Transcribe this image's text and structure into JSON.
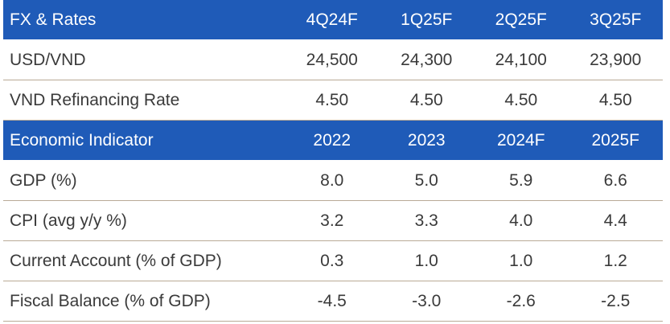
{
  "fx_section": {
    "header": [
      "FX & Rates",
      "4Q24F",
      "1Q25F",
      "2Q25F",
      "3Q25F"
    ],
    "rows": [
      [
        "USD/VND",
        "24,500",
        "24,300",
        "24,100",
        "23,900"
      ],
      [
        "VND Refinancing Rate",
        "4.50",
        "4.50",
        "4.50",
        "4.50"
      ]
    ]
  },
  "economic_section": {
    "header": [
      "Economic Indicator",
      "2022",
      "2023",
      "2024F",
      "2025F"
    ],
    "rows": [
      [
        "GDP (%)",
        "8.0",
        "5.0",
        "5.9",
        "6.6"
      ],
      [
        "CPI (avg y/y %)",
        "3.2",
        "3.3",
        "4.0",
        "4.4"
      ],
      [
        "Current Account (% of GDP)",
        "0.3",
        "1.0",
        "1.0",
        "1.2"
      ],
      [
        "Fiscal Balance (% of GDP)",
        "-4.5",
        "-3.0",
        "-2.6",
        "-2.5"
      ]
    ]
  },
  "colors": {
    "header_bg": "#1f5bb8",
    "header_text": "#ffffff",
    "divider": "#b9aa96"
  }
}
